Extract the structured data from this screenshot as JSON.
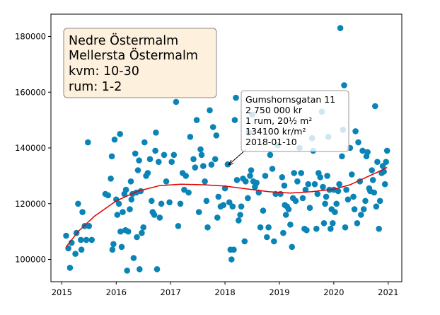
{
  "chart_data": {
    "type": "scatter",
    "title": "",
    "xlabel": "",
    "ylabel": "",
    "xlim": [
      2014.8,
      2021.25
    ],
    "ylim": [
      92000,
      188000
    ],
    "x_ticks": [
      2015,
      2016,
      2017,
      2018,
      2019,
      2020,
      2021
    ],
    "y_ticks": [
      100000,
      120000,
      140000,
      160000,
      180000
    ],
    "grid": false,
    "colors": {
      "points": "#0a84b6",
      "trend": "#e00000",
      "info_box_fill": "#fdf0dc",
      "info_box_edge": "#8a8a8a"
    },
    "info_box": {
      "placement": "top-left",
      "lines": [
        "Nedre Östermalm",
        "Mellersta Östermalm",
        "kvm: 10-30",
        "rum: 1-2"
      ]
    },
    "annotation": {
      "target": {
        "x": 2018.05,
        "y": 134100
      },
      "lines": [
        "Gumshornsgatan 11",
        "2 750 000 kr",
        "1 rum, 20½ m²",
        "134100 kr/m²",
        "2018-01-10"
      ]
    },
    "points": [
      [
        2015.08,
        108500
      ],
      [
        2015.12,
        104000
      ],
      [
        2015.15,
        97000
      ],
      [
        2015.18,
        106000
      ],
      [
        2015.25,
        102000
      ],
      [
        2015.27,
        109500
      ],
      [
        2015.3,
        120000
      ],
      [
        2015.35,
        107000
      ],
      [
        2015.36,
        103500
      ],
      [
        2015.38,
        117000
      ],
      [
        2015.42,
        112000
      ],
      [
        2015.45,
        107000
      ],
      [
        2015.48,
        142000
      ],
      [
        2015.5,
        112000
      ],
      [
        2015.55,
        107000
      ],
      [
        2015.8,
        123500
      ],
      [
        2015.85,
        123000
      ],
      [
        2015.9,
        129000
      ],
      [
        2015.92,
        137000
      ],
      [
        2015.93,
        103500
      ],
      [
        2015.95,
        105500
      ],
      [
        2015.97,
        143000
      ],
      [
        2016.0,
        121500
      ],
      [
        2016.02,
        116000
      ],
      [
        2016.05,
        120000
      ],
      [
        2016.07,
        145000
      ],
      [
        2016.08,
        110000
      ],
      [
        2016.1,
        104500
      ],
      [
        2016.12,
        117000
      ],
      [
        2016.15,
        123500
      ],
      [
        2016.17,
        110500
      ],
      [
        2016.18,
        125000
      ],
      [
        2016.2,
        96000
      ],
      [
        2016.22,
        110000
      ],
      [
        2016.25,
        118000
      ],
      [
        2016.27,
        128000
      ],
      [
        2016.28,
        121500
      ],
      [
        2016.3,
        123500
      ],
      [
        2016.32,
        100500
      ],
      [
        2016.35,
        138000
      ],
      [
        2016.37,
        124000
      ],
      [
        2016.38,
        108000
      ],
      [
        2016.4,
        132000
      ],
      [
        2016.42,
        135500
      ],
      [
        2016.43,
        96500
      ],
      [
        2016.45,
        124500
      ],
      [
        2016.47,
        109500
      ],
      [
        2016.5,
        111500
      ],
      [
        2016.52,
        142000
      ],
      [
        2016.55,
        130000
      ],
      [
        2016.58,
        131000
      ],
      [
        2016.62,
        136000
      ],
      [
        2016.65,
        121000
      ],
      [
        2016.67,
        117000
      ],
      [
        2016.7,
        116000
      ],
      [
        2016.72,
        139000
      ],
      [
        2016.73,
        145500
      ],
      [
        2016.75,
        96500
      ],
      [
        2016.78,
        135000
      ],
      [
        2016.8,
        115000
      ],
      [
        2016.83,
        120000
      ],
      [
        2016.88,
        137500
      ],
      [
        2016.92,
        128000
      ],
      [
        2016.98,
        120500
      ],
      [
        2017.02,
        135000
      ],
      [
        2017.06,
        137500
      ],
      [
        2017.1,
        156500
      ],
      [
        2017.14,
        112000
      ],
      [
        2017.18,
        120000
      ],
      [
        2017.22,
        131000
      ],
      [
        2017.25,
        125000
      ],
      [
        2017.28,
        130000
      ],
      [
        2017.33,
        124000
      ],
      [
        2017.36,
        144000
      ],
      [
        2017.42,
        136000
      ],
      [
        2017.45,
        133000
      ],
      [
        2017.48,
        150000
      ],
      [
        2017.52,
        117000
      ],
      [
        2017.55,
        139500
      ],
      [
        2017.57,
        137500
      ],
      [
        2017.6,
        133500
      ],
      [
        2017.63,
        128000
      ],
      [
        2017.66,
        121000
      ],
      [
        2017.68,
        111500
      ],
      [
        2017.72,
        153500
      ],
      [
        2017.75,
        134000
      ],
      [
        2017.78,
        147500
      ],
      [
        2017.82,
        136000
      ],
      [
        2017.84,
        144500
      ],
      [
        2017.86,
        115000
      ],
      [
        2017.88,
        122500
      ],
      [
        2017.92,
        119000
      ],
      [
        2017.97,
        119500
      ],
      [
        2018.0,
        125500
      ],
      [
        2018.05,
        134100
      ],
      [
        2018.08,
        120500
      ],
      [
        2018.1,
        103500
      ],
      [
        2018.12,
        100000
      ],
      [
        2018.14,
        119000
      ],
      [
        2018.16,
        103500
      ],
      [
        2018.18,
        150000
      ],
      [
        2018.2,
        158000
      ],
      [
        2018.22,
        128500
      ],
      [
        2018.25,
        114000
      ],
      [
        2018.28,
        116000
      ],
      [
        2018.3,
        119000
      ],
      [
        2018.33,
        129000
      ],
      [
        2018.36,
        106500
      ],
      [
        2018.38,
        128000
      ],
      [
        2018.42,
        122000
      ],
      [
        2018.44,
        145500
      ],
      [
        2018.46,
        130000
      ],
      [
        2018.48,
        132000
      ],
      [
        2018.5,
        152000
      ],
      [
        2018.52,
        128000
      ],
      [
        2018.55,
        126000
      ],
      [
        2018.58,
        127500
      ],
      [
        2018.62,
        124000
      ],
      [
        2018.65,
        111500
      ],
      [
        2018.7,
        117500
      ],
      [
        2018.74,
        130000
      ],
      [
        2018.77,
        108000
      ],
      [
        2018.8,
        111500
      ],
      [
        2018.83,
        137500
      ],
      [
        2018.87,
        132500
      ],
      [
        2018.9,
        106500
      ],
      [
        2018.93,
        123500
      ],
      [
        2018.97,
        141000
      ],
      [
        2019.02,
        123500
      ],
      [
        2019.05,
        129500
      ],
      [
        2019.07,
        109500
      ],
      [
        2019.09,
        126500
      ],
      [
        2019.1,
        119500
      ],
      [
        2019.12,
        116000
      ],
      [
        2019.14,
        119000
      ],
      [
        2019.17,
        118000
      ],
      [
        2019.2,
        112500
      ],
      [
        2019.23,
        104500
      ],
      [
        2019.25,
        122000
      ],
      [
        2019.27,
        131000
      ],
      [
        2019.3,
        121000
      ],
      [
        2019.33,
        128000
      ],
      [
        2019.37,
        140000
      ],
      [
        2019.4,
        131000
      ],
      [
        2019.43,
        122000
      ],
      [
        2019.46,
        111000
      ],
      [
        2019.48,
        125000
      ],
      [
        2019.5,
        110500
      ],
      [
        2019.53,
        127000
      ],
      [
        2019.56,
        118500
      ],
      [
        2019.6,
        143500
      ],
      [
        2019.62,
        139000
      ],
      [
        2019.65,
        127000
      ],
      [
        2019.68,
        111000
      ],
      [
        2019.7,
        123500
      ],
      [
        2019.72,
        131000
      ],
      [
        2019.75,
        129500
      ],
      [
        2019.78,
        153000
      ],
      [
        2019.8,
        126000
      ],
      [
        2019.82,
        113000
      ],
      [
        2019.84,
        120000
      ],
      [
        2019.86,
        122500
      ],
      [
        2019.88,
        130000
      ],
      [
        2019.9,
        144000
      ],
      [
        2019.92,
        125000
      ],
      [
        2019.94,
        111000
      ],
      [
        2019.96,
        118000
      ],
      [
        2019.98,
        113000
      ],
      [
        2020.0,
        125000
      ],
      [
        2020.02,
        117000
      ],
      [
        2020.05,
        120000
      ],
      [
        2020.08,
        124500
      ],
      [
        2020.1,
        127000
      ],
      [
        2020.12,
        183000
      ],
      [
        2020.15,
        137000
      ],
      [
        2020.17,
        146500
      ],
      [
        2020.19,
        162500
      ],
      [
        2020.21,
        111500
      ],
      [
        2020.23,
        125000
      ],
      [
        2020.26,
        121500
      ],
      [
        2020.3,
        140000
      ],
      [
        2020.33,
        130500
      ],
      [
        2020.36,
        122500
      ],
      [
        2020.38,
        118000
      ],
      [
        2020.4,
        146000
      ],
      [
        2020.43,
        113000
      ],
      [
        2020.45,
        142000
      ],
      [
        2020.48,
        128000
      ],
      [
        2020.5,
        116000
      ],
      [
        2020.53,
        139000
      ],
      [
        2020.55,
        118000
      ],
      [
        2020.58,
        121000
      ],
      [
        2020.6,
        137000
      ],
      [
        2020.62,
        138500
      ],
      [
        2020.65,
        125500
      ],
      [
        2020.67,
        124500
      ],
      [
        2020.7,
        132000
      ],
      [
        2020.72,
        128500
      ],
      [
        2020.74,
        124000
      ],
      [
        2020.76,
        155000
      ],
      [
        2020.78,
        119000
      ],
      [
        2020.8,
        135000
      ],
      [
        2020.83,
        111000
      ],
      [
        2020.85,
        121000
      ],
      [
        2020.88,
        131000
      ],
      [
        2020.9,
        133500
      ],
      [
        2020.92,
        131500
      ],
      [
        2020.94,
        127000
      ],
      [
        2020.96,
        135000
      ],
      [
        2020.98,
        139000
      ]
    ],
    "trend": [
      [
        2015.08,
        104500
      ],
      [
        2015.3,
        110000
      ],
      [
        2015.6,
        115500
      ],
      [
        2016.0,
        121000
      ],
      [
        2016.4,
        124500
      ],
      [
        2016.8,
        126500
      ],
      [
        2017.2,
        127000
      ],
      [
        2017.6,
        126800
      ],
      [
        2018.0,
        126300
      ],
      [
        2018.4,
        125300
      ],
      [
        2018.8,
        124300
      ],
      [
        2019.2,
        123800
      ],
      [
        2019.6,
        124300
      ],
      [
        2020.0,
        125200
      ],
      [
        2020.3,
        126800
      ],
      [
        2020.6,
        129500
      ],
      [
        2020.8,
        131300
      ],
      [
        2020.98,
        133000
      ]
    ]
  }
}
